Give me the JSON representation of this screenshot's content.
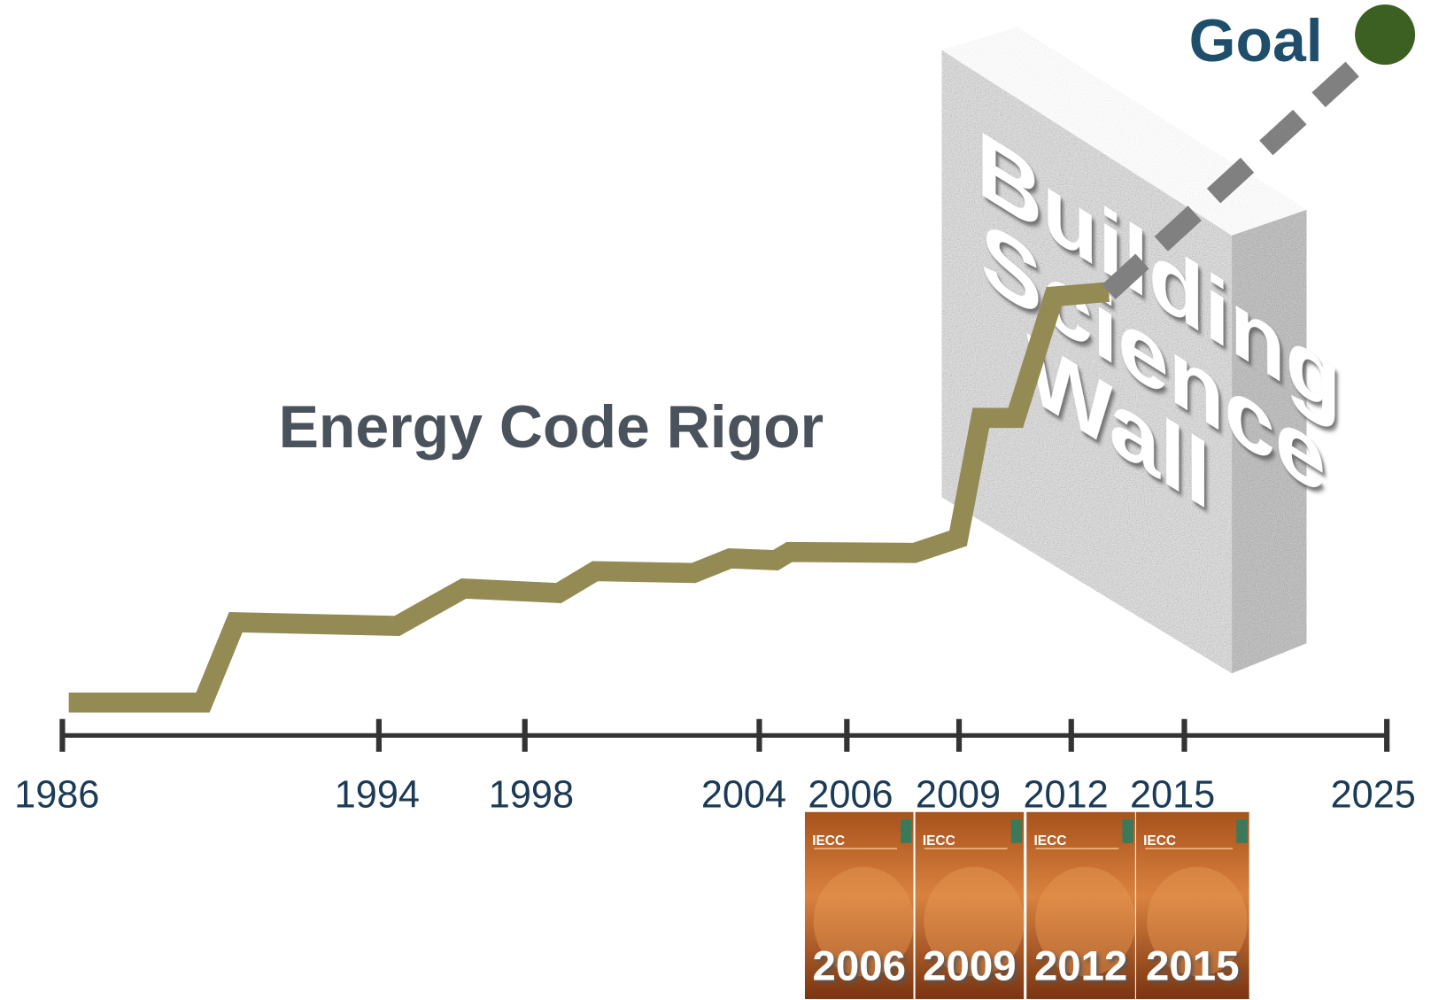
{
  "title": "Energy Code Rigor",
  "goal": "Goal",
  "wall": {
    "lines": [
      "Building",
      "Science",
      "Wall"
    ]
  },
  "timeline": {
    "labels": [
      "1986",
      "1994",
      "1998",
      "2004",
      "2006",
      "2009",
      "2012",
      "2015",
      "2025"
    ]
  },
  "books": [
    {
      "brand": "IECC",
      "year": "2006"
    },
    {
      "brand": "IECC",
      "year": "2009"
    },
    {
      "brand": "IECC",
      "year": "2012"
    },
    {
      "brand": "IECC",
      "year": "2015"
    }
  ]
}
